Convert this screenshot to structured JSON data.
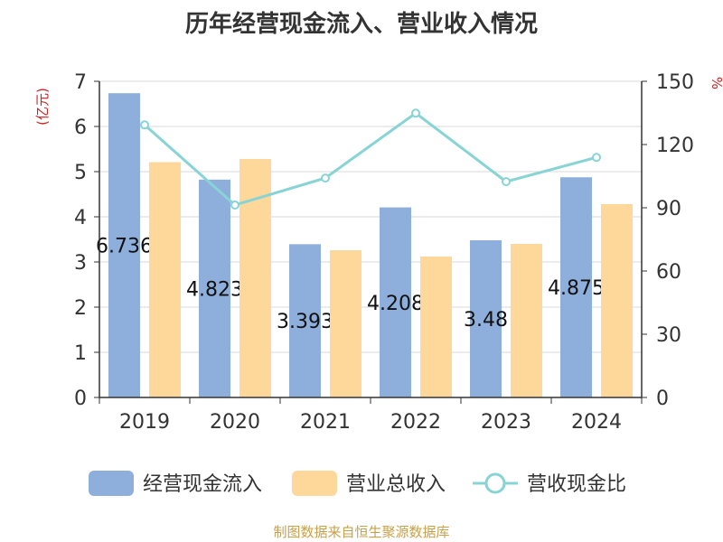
{
  "chart_data": {
    "type": "bar",
    "title": "历年经营现金流入、营业收入情况",
    "categories": [
      "2019",
      "2020",
      "2021",
      "2022",
      "2023",
      "2024"
    ],
    "series": [
      {
        "name": "经营现金流入",
        "type": "bar",
        "axis": "left",
        "color": "#8eaedb",
        "values": [
          6.736,
          4.823,
          3.393,
          4.208,
          3.48,
          4.875
        ],
        "labels": [
          "6.736",
          "4.823",
          "3.393",
          "4.208",
          "3.48",
          "4.875"
        ]
      },
      {
        "name": "营业总收入",
        "type": "bar",
        "axis": "left",
        "color": "#fdd89a",
        "values": [
          5.21,
          5.28,
          3.26,
          3.12,
          3.4,
          4.28
        ]
      },
      {
        "name": "营收现金比",
        "type": "line",
        "axis": "right",
        "color": "#88d4d4",
        "values": [
          129.3,
          91.3,
          104.1,
          134.9,
          102.4,
          113.9
        ]
      }
    ],
    "y_left": {
      "label": "(亿元)",
      "min": 0,
      "max": 7,
      "ticks": [
        "0",
        "1",
        "2",
        "3",
        "4",
        "5",
        "6",
        "7"
      ]
    },
    "y_right": {
      "label": "%",
      "min": 0,
      "max": 150,
      "ticks": [
        "0",
        "30",
        "60",
        "90",
        "120",
        "150"
      ]
    },
    "grid": true,
    "legend_position": "bottom",
    "axis_label_color": "#cc2222"
  },
  "footer": {
    "source": "制图数据来自恒生聚源数据库",
    "color": "#c9a04a"
  }
}
